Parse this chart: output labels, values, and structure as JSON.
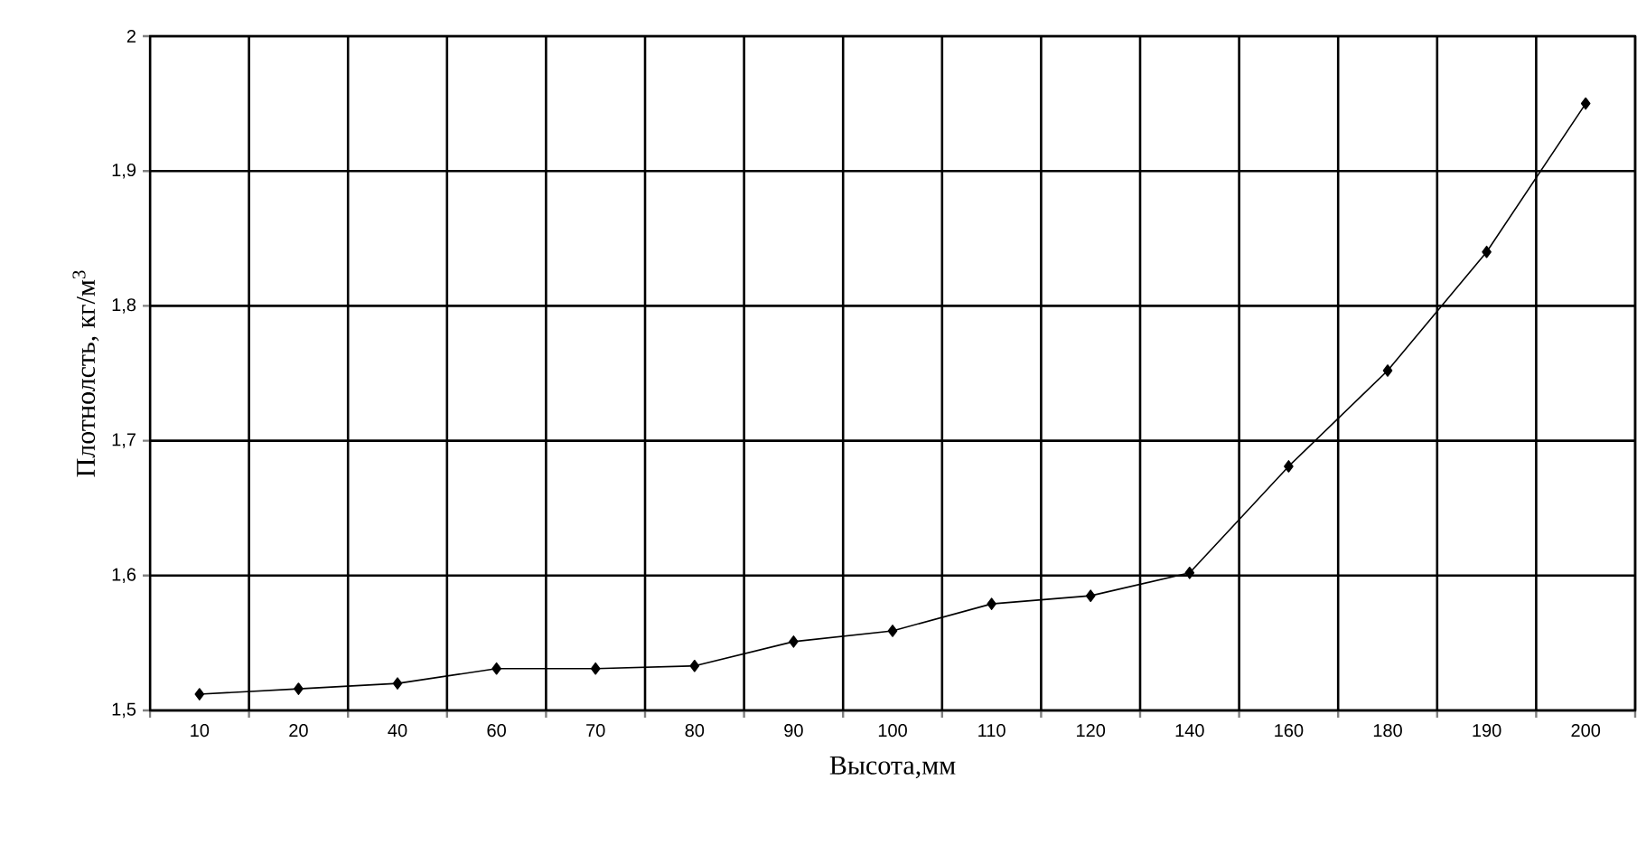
{
  "chart_data": {
    "type": "line",
    "xlabel": "Высота,мм",
    "ylabel": "Плотнолсть, кг/м$^{3}$",
    "categories": [
      "10",
      "20",
      "40",
      "60",
      "70",
      "80",
      "90",
      "100",
      "110",
      "120",
      "140",
      "160",
      "180",
      "190",
      "200"
    ],
    "series": [
      {
        "color": "#000000",
        "values": [
          1.512,
          1.516,
          1.52,
          1.531,
          1.531,
          1.533,
          1.551,
          1.559,
          1.579,
          1.585,
          1.602,
          1.681,
          1.752,
          1.84,
          1.95
        ]
      }
    ],
    "ylim": [
      1.5,
      2
    ],
    "yticks": [
      {
        "value": 1.5,
        "label": "1,5"
      },
      {
        "value": 1.6,
        "label": "1,6"
      },
      {
        "value": 1.7,
        "label": "1,7"
      },
      {
        "value": 1.8,
        "label": "1,8"
      },
      {
        "value": 1.9,
        "label": "1,9"
      },
      2
    ],
    "grid": true,
    "marker": "diamond",
    "line_style": "solid"
  }
}
